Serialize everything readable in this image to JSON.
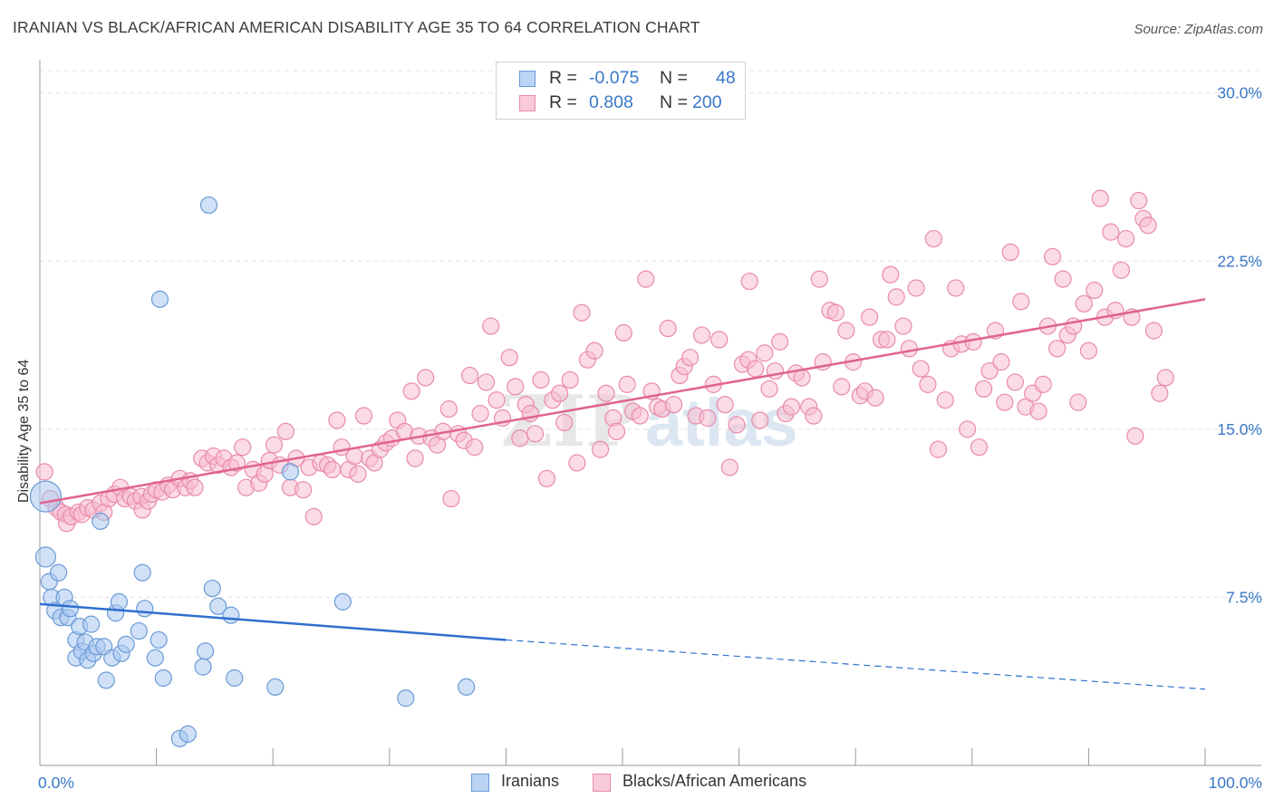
{
  "header": {
    "title": "IRANIAN VS BLACK/AFRICAN AMERICAN DISABILITY AGE 35 TO 64 CORRELATION CHART",
    "source": "Source: ZipAtlas.com"
  },
  "legend": {
    "row1": {
      "r_label": "R =",
      "r_value": "-0.075",
      "n_label": "N =",
      "n_value": "48"
    },
    "row2": {
      "r_label": "R =",
      "r_value": "0.808",
      "n_label": "N =",
      "n_value": "200"
    }
  },
  "bottom_legend": {
    "series1": "Iranians",
    "series2": "Blacks/African Americans"
  },
  "colors": {
    "blue_fill": "#a9c8f0",
    "blue_stroke": "#6a9ad6",
    "blue_line": "#2f6fcf",
    "pink_fill": "#f7bdd0",
    "pink_stroke": "#e98aab",
    "pink_line": "#e06391",
    "tick_text": "#3a78c8",
    "grid": "#e3e3e3"
  },
  "chart_data": {
    "type": "scatter",
    "title": "IRANIAN VS BLACK/AFRICAN AMERICAN DISABILITY AGE 35 TO 64 CORRELATION CHART",
    "ylabel": "Disability Age 35 to 64",
    "xlabel": "",
    "xlim": [
      0,
      100
    ],
    "ylim": [
      0,
      31
    ],
    "x_tick_labels": [
      "0.0%",
      "100.0%"
    ],
    "y_ticks": [
      7.5,
      15.0,
      22.5,
      30.0
    ],
    "y_tick_labels": [
      "7.5%",
      "15.0%",
      "22.5%",
      "30.0%"
    ],
    "grid": true,
    "legend_placement": "top-center",
    "watermark": "ZIPatlas",
    "series": [
      {
        "name": "Iranians",
        "R": -0.075,
        "N": 48,
        "trend": {
          "x0": 0,
          "y0": 7.2,
          "x1_solid": 40,
          "y1_solid": 5.6,
          "x1": 100,
          "y1": 3.4
        },
        "points": [
          [
            0.5,
            12.0
          ],
          [
            0.5,
            9.3
          ],
          [
            0.8,
            8.2
          ],
          [
            1.0,
            7.5
          ],
          [
            1.3,
            6.9
          ],
          [
            1.6,
            8.6
          ],
          [
            1.8,
            6.6
          ],
          [
            2.1,
            7.5
          ],
          [
            2.4,
            6.6
          ],
          [
            2.6,
            7.0
          ],
          [
            3.1,
            5.6
          ],
          [
            3.1,
            4.8
          ],
          [
            3.4,
            6.2
          ],
          [
            3.6,
            5.1
          ],
          [
            3.9,
            5.5
          ],
          [
            4.1,
            4.7
          ],
          [
            4.4,
            6.3
          ],
          [
            4.6,
            5.0
          ],
          [
            4.9,
            5.3
          ],
          [
            5.2,
            10.9
          ],
          [
            5.5,
            5.3
          ],
          [
            5.7,
            3.8
          ],
          [
            6.2,
            4.8
          ],
          [
            6.5,
            6.8
          ],
          [
            6.8,
            7.3
          ],
          [
            7.0,
            5.0
          ],
          [
            7.4,
            5.4
          ],
          [
            8.5,
            6.0
          ],
          [
            8.8,
            8.6
          ],
          [
            9.0,
            7.0
          ],
          [
            9.9,
            4.8
          ],
          [
            10.2,
            5.6
          ],
          [
            10.3,
            20.8
          ],
          [
            10.6,
            3.9
          ],
          [
            12.0,
            1.2
          ],
          [
            12.7,
            1.4
          ],
          [
            14.0,
            4.4
          ],
          [
            14.2,
            5.1
          ],
          [
            14.5,
            25.0
          ],
          [
            14.8,
            7.9
          ],
          [
            15.3,
            7.1
          ],
          [
            16.4,
            6.7
          ],
          [
            16.7,
            3.9
          ],
          [
            20.2,
            3.5
          ],
          [
            21.5,
            13.1
          ],
          [
            26.0,
            7.3
          ],
          [
            31.4,
            3.0
          ],
          [
            36.6,
            3.5
          ]
        ]
      },
      {
        "name": "Blacks/African Americans",
        "R": 0.808,
        "N": 200,
        "trend": {
          "x0": 0,
          "y0": 11.7,
          "x1": 100,
          "y1": 20.8
        },
        "points": [
          [
            0.4,
            13.1
          ],
          [
            0.9,
            11.9
          ],
          [
            1.4,
            11.5
          ],
          [
            1.8,
            11.3
          ],
          [
            2.2,
            11.2
          ],
          [
            2.3,
            10.8
          ],
          [
            2.7,
            11.1
          ],
          [
            3.3,
            11.3
          ],
          [
            3.6,
            11.2
          ],
          [
            4.1,
            11.5
          ],
          [
            4.6,
            11.4
          ],
          [
            5.2,
            11.7
          ],
          [
            5.5,
            11.3
          ],
          [
            5.9,
            11.9
          ],
          [
            6.4,
            12.1
          ],
          [
            6.9,
            12.4
          ],
          [
            7.3,
            11.9
          ],
          [
            7.8,
            12.0
          ],
          [
            8.2,
            11.8
          ],
          [
            8.7,
            12.0
          ],
          [
            8.8,
            11.4
          ],
          [
            9.3,
            11.8
          ],
          [
            9.6,
            12.1
          ],
          [
            10.0,
            12.3
          ],
          [
            10.5,
            12.2
          ],
          [
            11.0,
            12.5
          ],
          [
            11.4,
            12.3
          ],
          [
            12.0,
            12.8
          ],
          [
            12.5,
            12.4
          ],
          [
            12.9,
            12.7
          ],
          [
            13.3,
            12.4
          ],
          [
            13.9,
            13.7
          ],
          [
            14.4,
            13.5
          ],
          [
            14.9,
            13.8
          ],
          [
            15.3,
            13.4
          ],
          [
            15.8,
            13.7
          ],
          [
            16.4,
            13.3
          ],
          [
            16.9,
            13.5
          ],
          [
            17.4,
            14.2
          ],
          [
            17.7,
            12.4
          ],
          [
            18.3,
            13.2
          ],
          [
            18.8,
            12.6
          ],
          [
            19.3,
            13.0
          ],
          [
            19.7,
            13.6
          ],
          [
            20.1,
            14.3
          ],
          [
            20.6,
            13.4
          ],
          [
            21.1,
            14.9
          ],
          [
            21.5,
            12.4
          ],
          [
            22.0,
            13.7
          ],
          [
            22.6,
            12.3
          ],
          [
            23.1,
            13.3
          ],
          [
            23.5,
            11.1
          ],
          [
            24.1,
            13.5
          ],
          [
            24.7,
            13.4
          ],
          [
            25.1,
            13.2
          ],
          [
            25.5,
            15.4
          ],
          [
            25.9,
            14.2
          ],
          [
            26.5,
            13.2
          ],
          [
            27.0,
            13.8
          ],
          [
            27.3,
            13.0
          ],
          [
            27.8,
            15.6
          ],
          [
            28.3,
            13.7
          ],
          [
            28.7,
            13.5
          ],
          [
            29.2,
            14.1
          ],
          [
            29.7,
            14.4
          ],
          [
            30.2,
            14.6
          ],
          [
            30.7,
            15.4
          ],
          [
            31.3,
            14.9
          ],
          [
            31.9,
            16.7
          ],
          [
            32.2,
            13.7
          ],
          [
            32.5,
            14.7
          ],
          [
            33.1,
            17.3
          ],
          [
            33.6,
            14.6
          ],
          [
            34.1,
            14.3
          ],
          [
            34.6,
            14.9
          ],
          [
            35.1,
            15.9
          ],
          [
            35.3,
            11.9
          ],
          [
            35.9,
            14.8
          ],
          [
            36.4,
            14.5
          ],
          [
            36.9,
            17.4
          ],
          [
            37.3,
            14.2
          ],
          [
            37.8,
            15.7
          ],
          [
            38.3,
            17.1
          ],
          [
            38.7,
            19.6
          ],
          [
            39.2,
            16.3
          ],
          [
            39.7,
            15.5
          ],
          [
            40.3,
            18.2
          ],
          [
            40.8,
            16.9
          ],
          [
            41.2,
            14.6
          ],
          [
            41.7,
            16.1
          ],
          [
            42.1,
            15.7
          ],
          [
            42.5,
            14.8
          ],
          [
            43.0,
            17.2
          ],
          [
            43.5,
            12.8
          ],
          [
            44.0,
            16.3
          ],
          [
            44.6,
            16.6
          ],
          [
            45.0,
            15.3
          ],
          [
            45.5,
            17.2
          ],
          [
            46.1,
            13.5
          ],
          [
            46.5,
            20.2
          ],
          [
            47.0,
            18.1
          ],
          [
            47.6,
            18.5
          ],
          [
            48.1,
            14.1
          ],
          [
            48.6,
            16.6
          ],
          [
            49.2,
            15.5
          ],
          [
            49.5,
            14.9
          ],
          [
            50.1,
            19.3
          ],
          [
            50.4,
            17.0
          ],
          [
            50.9,
            15.8
          ],
          [
            51.5,
            15.6
          ],
          [
            52.0,
            21.7
          ],
          [
            52.5,
            16.7
          ],
          [
            53.0,
            16.0
          ],
          [
            53.4,
            15.9
          ],
          [
            53.9,
            19.5
          ],
          [
            54.4,
            16.1
          ],
          [
            54.9,
            17.4
          ],
          [
            55.3,
            17.8
          ],
          [
            55.8,
            18.2
          ],
          [
            56.3,
            15.6
          ],
          [
            56.8,
            19.2
          ],
          [
            57.3,
            15.5
          ],
          [
            57.8,
            17.0
          ],
          [
            58.3,
            19.0
          ],
          [
            58.8,
            16.1
          ],
          [
            59.2,
            13.3
          ],
          [
            59.8,
            15.2
          ],
          [
            60.3,
            17.9
          ],
          [
            60.8,
            18.1
          ],
          [
            60.9,
            21.6
          ],
          [
            61.4,
            17.7
          ],
          [
            61.8,
            15.4
          ],
          [
            62.2,
            18.4
          ],
          [
            62.6,
            16.8
          ],
          [
            63.1,
            17.6
          ],
          [
            63.5,
            18.9
          ],
          [
            64.0,
            15.7
          ],
          [
            64.5,
            16.0
          ],
          [
            64.9,
            17.5
          ],
          [
            65.4,
            17.3
          ],
          [
            66.0,
            16.0
          ],
          [
            66.4,
            15.6
          ],
          [
            66.9,
            21.7
          ],
          [
            67.2,
            18.0
          ],
          [
            67.8,
            20.3
          ],
          [
            68.3,
            20.2
          ],
          [
            68.8,
            16.9
          ],
          [
            69.2,
            19.4
          ],
          [
            69.8,
            18.0
          ],
          [
            70.4,
            16.5
          ],
          [
            70.8,
            16.7
          ],
          [
            71.2,
            20.0
          ],
          [
            71.7,
            16.4
          ],
          [
            72.2,
            19.0
          ],
          [
            72.7,
            19.0
          ],
          [
            73.0,
            21.9
          ],
          [
            73.5,
            20.9
          ],
          [
            74.1,
            19.6
          ],
          [
            74.6,
            18.6
          ],
          [
            75.2,
            21.3
          ],
          [
            75.6,
            17.7
          ],
          [
            76.2,
            17.0
          ],
          [
            76.7,
            23.5
          ],
          [
            77.1,
            14.1
          ],
          [
            77.7,
            16.3
          ],
          [
            78.2,
            18.6
          ],
          [
            78.6,
            21.3
          ],
          [
            79.1,
            18.8
          ],
          [
            79.6,
            15.0
          ],
          [
            80.1,
            18.9
          ],
          [
            80.6,
            14.2
          ],
          [
            81.0,
            16.8
          ],
          [
            81.5,
            17.6
          ],
          [
            82.0,
            19.4
          ],
          [
            82.5,
            18.0
          ],
          [
            82.8,
            16.2
          ],
          [
            83.3,
            22.9
          ],
          [
            83.7,
            17.1
          ],
          [
            84.2,
            20.7
          ],
          [
            84.6,
            16.0
          ],
          [
            85.2,
            16.6
          ],
          [
            85.7,
            15.8
          ],
          [
            86.1,
            17.0
          ],
          [
            86.5,
            19.6
          ],
          [
            86.9,
            22.7
          ],
          [
            87.3,
            18.6
          ],
          [
            87.8,
            21.7
          ],
          [
            88.2,
            19.2
          ],
          [
            88.7,
            19.6
          ],
          [
            89.1,
            16.2
          ],
          [
            89.6,
            20.6
          ],
          [
            90.0,
            18.5
          ],
          [
            90.5,
            21.2
          ],
          [
            91.0,
            25.3
          ],
          [
            91.4,
            20.0
          ],
          [
            91.9,
            23.8
          ],
          [
            92.3,
            20.3
          ],
          [
            92.8,
            22.1
          ],
          [
            93.2,
            23.5
          ],
          [
            93.7,
            20.0
          ],
          [
            94.0,
            14.7
          ],
          [
            94.3,
            25.2
          ],
          [
            94.7,
            24.4
          ],
          [
            95.1,
            24.1
          ],
          [
            95.6,
            19.4
          ],
          [
            96.1,
            16.6
          ],
          [
            96.6,
            17.3
          ]
        ]
      }
    ]
  }
}
